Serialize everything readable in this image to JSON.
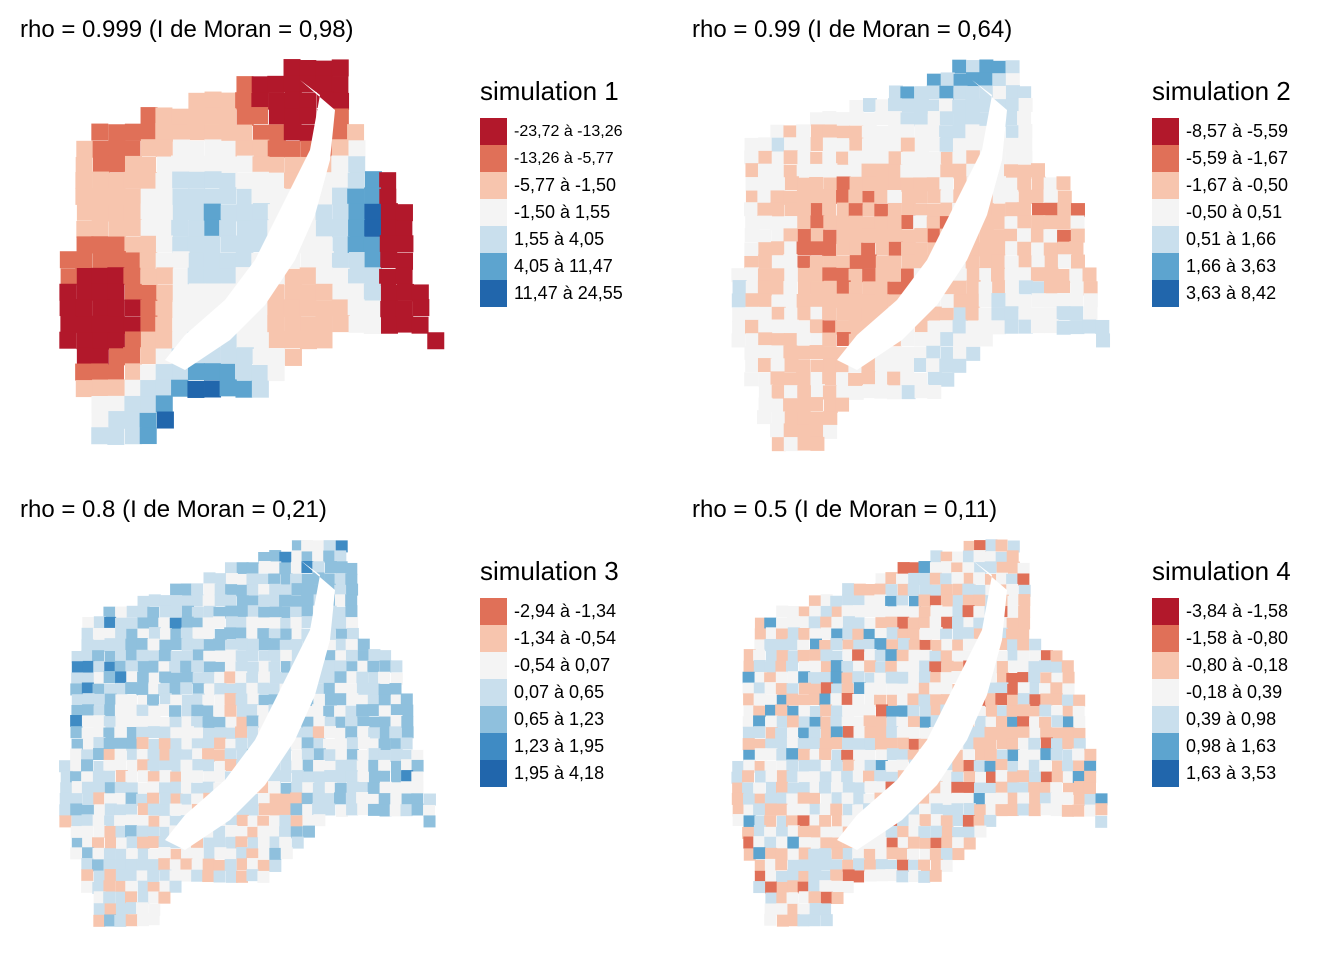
{
  "panels": [
    {
      "title": "rho = 0.999 (I de Moran = 0,98)",
      "legend_title": "simulation 1",
      "classes": [
        {
          "label": "-23,72 à -13,26",
          "color": "#b2182b"
        },
        {
          "label": "-13,26 à -5,77",
          "color": "#e07058"
        },
        {
          "label": "-5,77 à -1,50",
          "color": "#f7c5ae"
        },
        {
          "label": "-1,50 à 1,55",
          "color": "#f4f4f4"
        },
        {
          "label": "1,55 à 4,05",
          "color": "#c9dfed"
        },
        {
          "label": "4,05 à 11,47",
          "color": "#5da4cf"
        },
        {
          "label": "11,47 à 24,55",
          "color": "#2166ac"
        }
      ]
    },
    {
      "title": "rho = 0.99 (I de Moran = 0,64)",
      "legend_title": "simulation 2",
      "classes": [
        {
          "label": "-8,57 à -5,59",
          "color": "#b2182b"
        },
        {
          "label": "-5,59 à -1,67",
          "color": "#e07058"
        },
        {
          "label": "-1,67 à -0,50",
          "color": "#f7c5ae"
        },
        {
          "label": "-0,50 à 0,51",
          "color": "#f4f4f4"
        },
        {
          "label": "0,51 à 1,66",
          "color": "#c9dfed"
        },
        {
          "label": "1,66 à 3,63",
          "color": "#5da4cf"
        },
        {
          "label": "3,63 à 8,42",
          "color": "#2166ac"
        }
      ]
    },
    {
      "title": "rho = 0.8 (I de Moran = 0,21)",
      "legend_title": "simulation 3",
      "classes": [
        {
          "label": "-2,94 à -1,34",
          "color": "#e07058"
        },
        {
          "label": "-1,34 à -0,54",
          "color": "#f7c5ae"
        },
        {
          "label": "-0,54 à 0,07",
          "color": "#f4f4f4"
        },
        {
          "label": "0,07 à 0,65",
          "color": "#c9dfed"
        },
        {
          "label": "0,65 à 1,23",
          "color": "#8fc0dd"
        },
        {
          "label": "1,23 à 1,95",
          "color": "#3f8bc4"
        },
        {
          "label": "1,95 à 4,18",
          "color": "#2166ac"
        }
      ]
    },
    {
      "title": "rho = 0.5 (I de Moran = 0,11)",
      "legend_title": "simulation 4",
      "classes": [
        {
          "label": "-3,84 à -1,58",
          "color": "#b2182b"
        },
        {
          "label": "-1,58 à -0,80",
          "color": "#e07058"
        },
        {
          "label": "-0,80 à -0,18",
          "color": "#f7c5ae"
        },
        {
          "label": "-0,18 à 0,39",
          "color": "#f4f4f4"
        },
        {
          "label": "0,39 à 0,98",
          "color": "#c9dfed"
        },
        {
          "label": "0,98 à 1,63",
          "color": "#5da4cf"
        },
        {
          "label": "1,63 à 3,53",
          "color": "#2166ac"
        }
      ]
    }
  ]
}
